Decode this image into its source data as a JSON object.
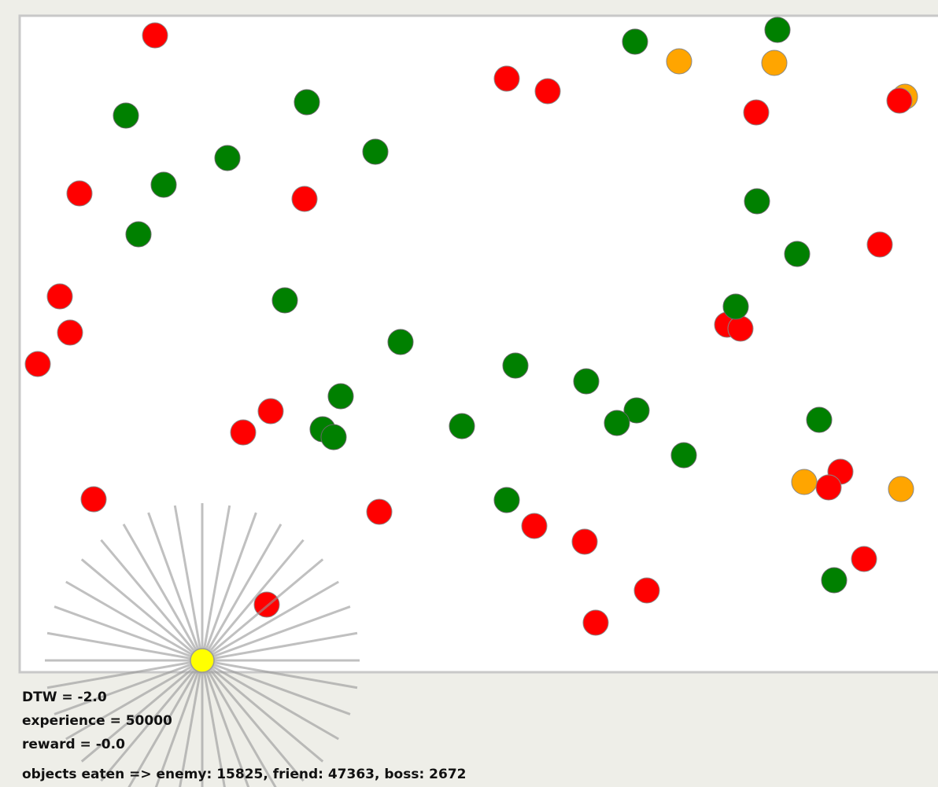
{
  "status": {
    "lines": [
      "DTW = -2.0",
      "experience = 50000",
      "reward = -0.0",
      "objects eaten => enemy: 15825, friend: 47363, boss: 2672"
    ]
  }
}
